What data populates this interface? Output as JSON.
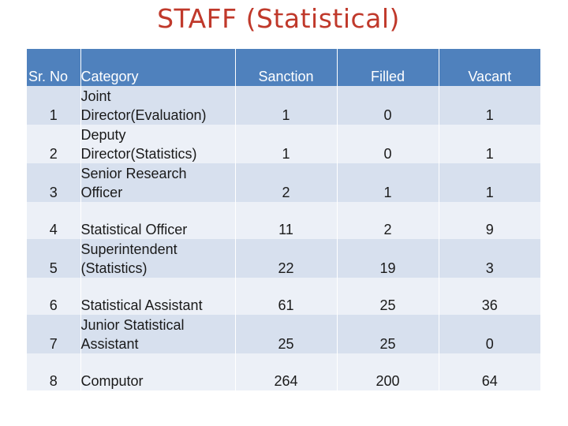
{
  "title": "STAFF   (Statistical)",
  "table": {
    "headers": {
      "sr_no": "Sr. No",
      "category": "Category",
      "sanction": "Sanction",
      "filled": "Filled",
      "vacant": "Vacant"
    },
    "rows": [
      {
        "sr": "1",
        "category_lines": [
          "Joint",
          "Director(Evaluation)"
        ],
        "sanction": "1",
        "filled": "0",
        "vacant": "1"
      },
      {
        "sr": "2",
        "category_lines": [
          "Deputy",
          "Director(Statistics)"
        ],
        "sanction": "1",
        "filled": "0",
        "vacant": "1"
      },
      {
        "sr": "3",
        "category_lines": [
          "Senior Research",
          "Officer"
        ],
        "sanction": "2",
        "filled": "1",
        "vacant": "1"
      },
      {
        "sr": "4",
        "category_lines": [
          "Statistical Officer"
        ],
        "sanction": "11",
        "filled": "2",
        "vacant": "9"
      },
      {
        "sr": "5",
        "category_lines": [
          "Superintendent",
          "(Statistics)"
        ],
        "sanction": "22",
        "filled": "19",
        "vacant": "3"
      },
      {
        "sr": "6",
        "category_lines": [
          "Statistical Assistant"
        ],
        "sanction": "61",
        "filled": "25",
        "vacant": "36"
      },
      {
        "sr": "7",
        "category_lines": [
          "Junior Statistical",
          "Assistant"
        ],
        "sanction": "25",
        "filled": "25",
        "vacant": "0"
      },
      {
        "sr": "8",
        "category_lines": [
          "Computor"
        ],
        "sanction": "264",
        "filled": "200",
        "vacant": "64"
      }
    ]
  }
}
